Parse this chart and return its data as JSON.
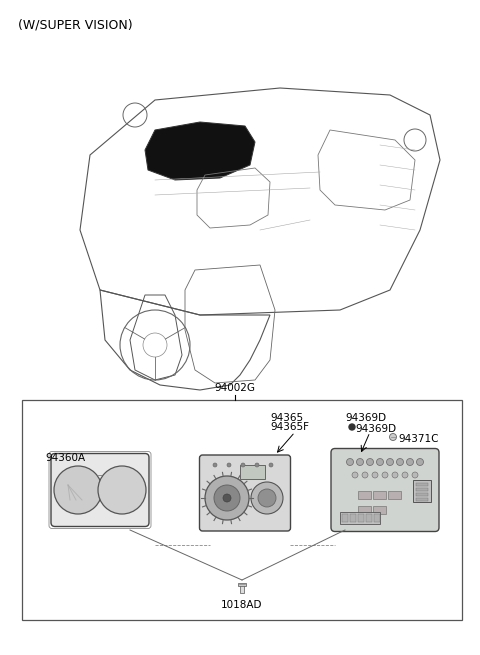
{
  "title": "(W/SUPER VISION)",
  "background_color": "#ffffff",
  "border_color": "#000000",
  "text_color": "#000000",
  "part_label_94002G": "94002G",
  "part_label_94360A": "94360A",
  "part_label_94365": "94365",
  "part_label_94365F": "94365F",
  "part_label_94369D_1": "94369D",
  "part_label_94369D_2": "94369D",
  "part_label_94371C": "94371C",
  "part_label_1018AD": "1018AD",
  "title_fontsize": 9,
  "label_fontsize": 7.5,
  "fig_width": 4.8,
  "fig_height": 6.55,
  "dpi": 100
}
